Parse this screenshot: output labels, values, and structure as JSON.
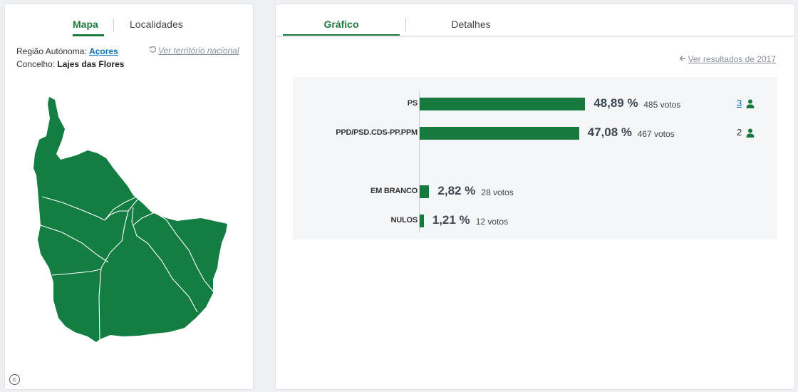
{
  "left_panel": {
    "tabs": [
      {
        "label": "Mapa",
        "active": true
      },
      {
        "label": "Localidades",
        "active": false
      }
    ],
    "regiao_label": "Região Autónoma:",
    "regiao_value": "Açores",
    "concelho_label": "Concelho:",
    "concelho_value": "Lajes das Flores",
    "ver_nacional": "Ver território nacional",
    "copyright_symbol": "c"
  },
  "right_panel": {
    "tabs": [
      {
        "label": "Gráfico",
        "active": true
      },
      {
        "label": "Detalhes",
        "active": false
      }
    ],
    "ver_resultados": "Ver resultados de 2017",
    "results": [
      {
        "party": "PS",
        "percent": 48.89,
        "percent_text": "48,89 %",
        "votes_text": "485 votos",
        "seats": "3",
        "seats_link": true
      },
      {
        "party": "PPD/PSD.CDS-PP.PPM",
        "percent": 47.08,
        "percent_text": "47,08 %",
        "votes_text": "467 votos",
        "seats": "2",
        "seats_link": false
      }
    ],
    "others": [
      {
        "label": "EM BRANCO",
        "percent": 2.82,
        "percent_text": "2,82 %",
        "votes_text": "28 votos"
      },
      {
        "label": "NULOS",
        "percent": 1.21,
        "percent_text": "1,21 %",
        "votes_text": "12 votos"
      }
    ]
  },
  "colors": {
    "accent": "#1b7a3e",
    "bar": "#167a3e",
    "map_fill": "#137d42",
    "link": "#0b6fb8"
  },
  "icons": [
    "undo-icon",
    "arrow-left-icon",
    "person-icon",
    "copyright-icon"
  ]
}
